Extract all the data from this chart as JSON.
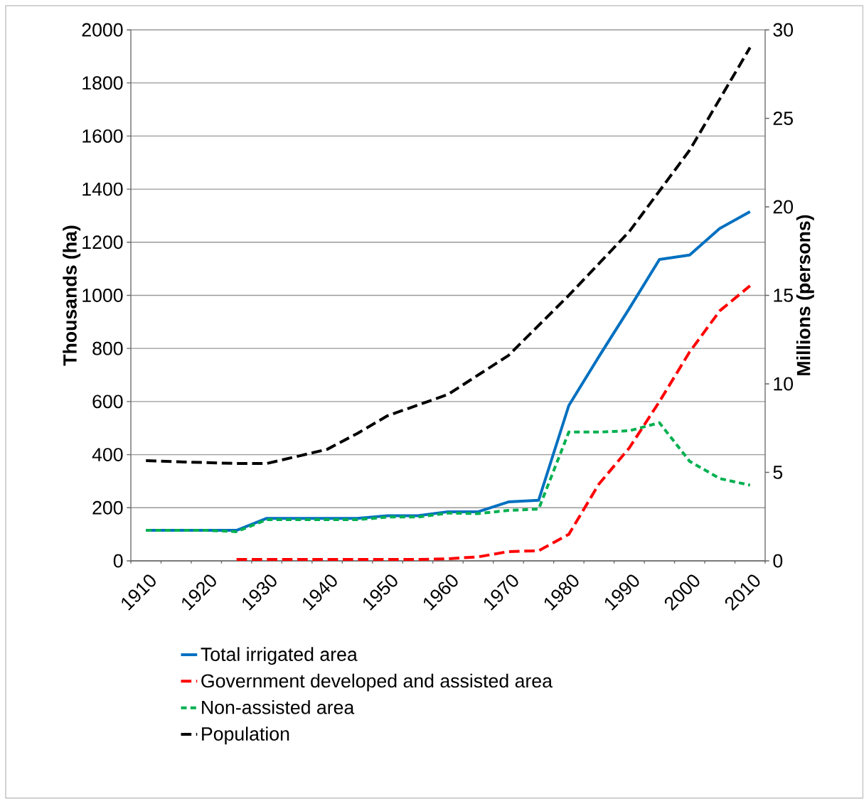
{
  "chart_data": {
    "type": "line",
    "categories": [
      "1910",
      null,
      "1920",
      null,
      "1930",
      null,
      "1940",
      null,
      "1950",
      null,
      "1960",
      null,
      "1970",
      null,
      "1980",
      null,
      "1990",
      null,
      "2000",
      null,
      "2010"
    ],
    "ylabel": "Thousands (ha)",
    "y2label": "Millions (persons)",
    "ylim": [
      0,
      2000
    ],
    "yticks": [
      0,
      200,
      400,
      600,
      800,
      1000,
      1200,
      1400,
      1600,
      1800,
      2000
    ],
    "y2lim": [
      0,
      30
    ],
    "y2ticks": [
      0,
      5,
      10,
      15,
      20,
      25,
      30
    ],
    "grid": "y",
    "legend": "bottom",
    "series": [
      {
        "name": "Total irrigated area",
        "color": "#0070c0",
        "line_style": "solid",
        "values": [
          115,
          115,
          115,
          115,
          160,
          160,
          160,
          160,
          170,
          170,
          185,
          185,
          222,
          228,
          585,
          770,
          950,
          1135,
          1152,
          1252,
          1315
        ]
      },
      {
        "name": "Government developed and assisted area",
        "color": "#ff0000",
        "line_style": "dashed",
        "values": [
          null,
          null,
          null,
          5,
          5,
          5,
          5,
          5,
          5,
          5,
          8,
          15,
          35,
          38,
          100,
          290,
          425,
          600,
          787,
          942,
          1036
        ]
      },
      {
        "name": "Non-assisted area",
        "color": "#00b050",
        "line_style": "dotted",
        "values": [
          115,
          115,
          115,
          110,
          155,
          155,
          155,
          155,
          165,
          165,
          180,
          178,
          190,
          195,
          485,
          485,
          490,
          520,
          375,
          310,
          285
        ]
      },
      {
        "name": "Population",
        "color": "#000000",
        "line_style": "dashed",
        "axis": "y2",
        "values": [
          5.66,
          5.6,
          5.55,
          5.5,
          5.5,
          5.9,
          6.3,
          7.2,
          8.2,
          8.8,
          9.4,
          10.5,
          11.6,
          13.3,
          15.0,
          16.8,
          18.6,
          20.9,
          23.2,
          26.1,
          29.0
        ]
      }
    ]
  }
}
